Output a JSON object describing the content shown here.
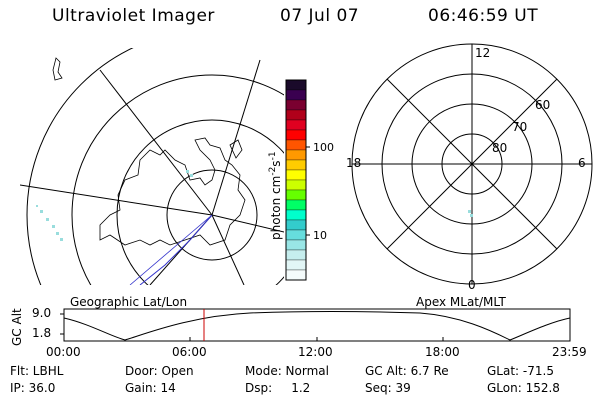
{
  "header": {
    "instrument": "Ultraviolet Imager",
    "date": "07 Jul 07",
    "time": "06:46:59 UT"
  },
  "polar_plot": {
    "mlt_labels": [
      "12",
      "18",
      "6",
      "0"
    ],
    "lat_labels": [
      "60",
      "70",
      "80"
    ]
  },
  "colorbar": {
    "label_main": "photon cm",
    "label_exp1": "-2",
    "label_mid": "s",
    "label_exp2": "-1",
    "ticks": [
      "100",
      "10"
    ],
    "colors": [
      "#1a0a2a",
      "#3a0050",
      "#7a0030",
      "#b0001a",
      "#e00020",
      "#ff0000",
      "#ff5500",
      "#ff9900",
      "#ffcc00",
      "#ffff00",
      "#ccff00",
      "#66ff00",
      "#00ff66",
      "#00ffcc",
      "#33cccc",
      "#66dddd",
      "#99e6e6",
      "#c6eeee",
      "#e2f6f6",
      "#f4fbfb"
    ]
  },
  "panel_titles": {
    "left": "Geographic Lat/Lon",
    "right": "Apex MLat/MLT"
  },
  "altitude_plot": {
    "ylabel": "GC Alt",
    "yticks": [
      "9.0",
      "1.8"
    ],
    "xticks": [
      "00:00",
      "06:00",
      "12:00",
      "18:00",
      "23:59"
    ]
  },
  "status": {
    "flt": "Flt: LBHL",
    "ip": "IP: 36.0",
    "door": "Door: Open",
    "gain": "Gain: 14",
    "mode": "Mode: Normal",
    "dsp": "Dsp:     1.2",
    "gcalt": "GC Alt: 6.7 Re",
    "seq": "Seq: 39",
    "glat": "GLat: -71.5",
    "glon": "GLon: 152.8"
  },
  "colors": {
    "background": "#ffffff",
    "line": "#000000",
    "track": "#3333cc",
    "marker": "#cc0000",
    "aurora": "#99dddd"
  }
}
